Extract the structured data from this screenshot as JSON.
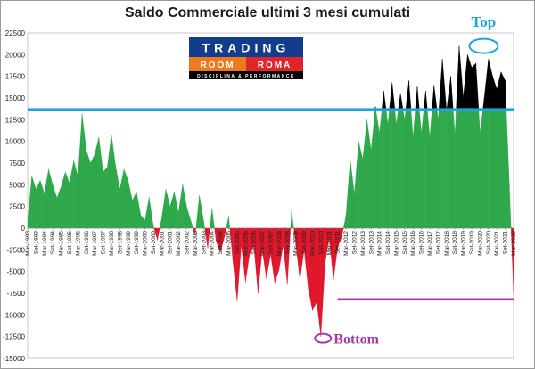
{
  "chart_data": {
    "type": "area",
    "title": "Saldo Commerciale ultimi 3 mesi cumulati",
    "xlabel": "",
    "ylabel": "",
    "ylim": [
      -15000,
      22500
    ],
    "yticks": [
      22500,
      20000,
      17500,
      15000,
      12500,
      10000,
      7500,
      5000,
      2500,
      0,
      -2500,
      -5000,
      -7500,
      -10000,
      -12500,
      -15000
    ],
    "xtick_labels": [
      "Mar-1993",
      "Set-1993",
      "Mar-1994",
      "Set-1994",
      "Mar-1995",
      "Set-1995",
      "Mar-1996",
      "Set-1996",
      "Mar-1997",
      "Set-1997",
      "Mar-1998",
      "Set-1998",
      "Mar-1999",
      "Set-1999",
      "Mar-2000",
      "Set-2000",
      "Mar-2001",
      "Set-2001",
      "Mar-2002",
      "Set-2002",
      "Mar-2003",
      "Set-2003",
      "Mar-2004",
      "Set-2004",
      "Mar-2005",
      "Set-2005",
      "Mar-2006",
      "Set-2006",
      "Mar-2007",
      "Set-2007",
      "Mar-2008",
      "Set-2008",
      "Mar-2009",
      "Set-2009",
      "Mar-2010",
      "Set-2010",
      "Mar-2011",
      "Set-2011",
      "Mar-2012",
      "Set-2012",
      "Mar-2013",
      "Set-2013",
      "Mar-2014",
      "Set-2014",
      "Mar-2015",
      "Set-2015",
      "Mar-2016",
      "Set-2016",
      "Mar-2017",
      "Set-2017",
      "Mar-2018",
      "Set-2018",
      "Mar-2019",
      "Set-2019",
      "Mar-2020",
      "Set-2020",
      "Mar-2021",
      "Set-2021",
      "Mar-2022"
    ],
    "grid": false,
    "colors": {
      "positive": "#2ea84a",
      "negative": "#e0162b",
      "above_line": "#000000",
      "top_line": "#1fa3dc",
      "bottom_line": "#a03aa5"
    },
    "reference_lines": [
      {
        "value": 13700,
        "color": "#1fa3dc",
        "from": "Mar-1993"
      },
      {
        "value": -8200,
        "color": "#a03aa5",
        "from": "Set-2011"
      }
    ],
    "annotations": [
      {
        "text": "Top",
        "color": "#1fa3dc",
        "near": "Mar-2020",
        "y": 21000
      },
      {
        "text": "Bottom",
        "color": "#a03aa5",
        "near": "Mar-2011",
        "y": -12700
      }
    ],
    "threshold": 13700,
    "series": [
      {
        "x": [
          "1993-03",
          "1993-06",
          "1993-09",
          "1993-12",
          "1994-03",
          "1994-06",
          "1994-09",
          "1994-12",
          "1995-03",
          "1995-06",
          "1995-09",
          "1995-12",
          "1996-03",
          "1996-06",
          "1996-09",
          "1996-12",
          "1997-03",
          "1997-06",
          "1997-09",
          "1997-12",
          "1998-03",
          "1998-06",
          "1998-09",
          "1998-12",
          "1999-03",
          "1999-06",
          "1999-09",
          "1999-12",
          "2000-03",
          "2000-06",
          "2000-09",
          "2000-12",
          "2001-03",
          "2001-06",
          "2001-09",
          "2001-12",
          "2002-03",
          "2002-06",
          "2002-09",
          "2002-12",
          "2003-03",
          "2003-06",
          "2003-09",
          "2003-12",
          "2004-03",
          "2004-06",
          "2004-09",
          "2004-12",
          "2005-03",
          "2005-06",
          "2005-09",
          "2005-12",
          "2006-03",
          "2006-06",
          "2006-09",
          "2006-12",
          "2007-03",
          "2007-06",
          "2007-09",
          "2007-12",
          "2008-03",
          "2008-06",
          "2008-09",
          "2008-12",
          "2009-03",
          "2009-06",
          "2009-09",
          "2009-12",
          "2010-03",
          "2010-06",
          "2010-09",
          "2010-12",
          "2011-03",
          "2011-06",
          "2011-09",
          "2011-12",
          "2012-03",
          "2012-06",
          "2012-09",
          "2012-12",
          "2013-03",
          "2013-06",
          "2013-09",
          "2013-12",
          "2014-03",
          "2014-06",
          "2014-09",
          "2014-12",
          "2015-03",
          "2015-06",
          "2015-09",
          "2015-12",
          "2016-03",
          "2016-06",
          "2016-09",
          "2016-12",
          "2017-03",
          "2017-06",
          "2017-09",
          "2017-12",
          "2018-03",
          "2018-06",
          "2018-09",
          "2018-12",
          "2019-03",
          "2019-06",
          "2019-09",
          "2019-12",
          "2020-03",
          "2020-06",
          "2020-09",
          "2020-12",
          "2021-03",
          "2021-06",
          "2021-09",
          "2021-12",
          "2022-03"
        ],
        "values": [
          1000,
          6000,
          4500,
          5500,
          4000,
          6800,
          5000,
          3500,
          4800,
          6500,
          5200,
          7800,
          6000,
          13200,
          9000,
          7500,
          8500,
          10500,
          6500,
          7000,
          10800,
          7200,
          4500,
          6800,
          5500,
          3200,
          4200,
          1500,
          900,
          3600,
          300,
          -1400,
          1200,
          4500,
          2500,
          4200,
          1800,
          5100,
          2400,
          800,
          -800,
          3800,
          900,
          -2300,
          2300,
          -1500,
          -2800,
          -1000,
          1400,
          -3800,
          -8400,
          -2000,
          -6200,
          -3000,
          -2000,
          -7500,
          -2500,
          -5800,
          -3000,
          -6300,
          -4800,
          -2000,
          -6500,
          2000,
          -1800,
          -6000,
          -2500,
          -7000,
          -9500,
          -8500,
          -12500,
          -4000,
          -1200,
          -6000,
          -2200,
          -1000,
          1500,
          8000,
          4000,
          10000,
          8000,
          12500,
          9000,
          14000,
          11000,
          15800,
          12000,
          16800,
          12000,
          15500,
          12500,
          17000,
          10500,
          16300,
          11000,
          15800,
          10500,
          16500,
          12500,
          19500,
          13500,
          17500,
          10800,
          21000,
          15000,
          20000,
          18500,
          19000,
          11000,
          15000,
          19500,
          17500,
          16000,
          18000,
          17000,
          5000,
          -7600
        ]
      }
    ]
  },
  "logo": {
    "line1": "TRADING",
    "line2a": "ROOM",
    "line2b": "ROMA",
    "tagline": "DISCIPLINA & PERFORMANCE"
  }
}
